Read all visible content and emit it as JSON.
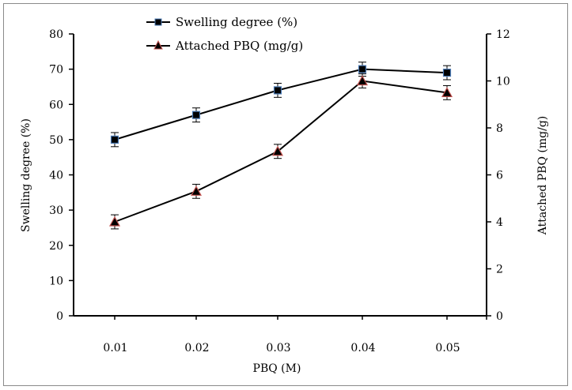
{
  "chart_data": {
    "type": "line",
    "title": "",
    "xlabel": "PBQ (M)",
    "ylabel": "Swelling degree (%)",
    "y2label": "Attached PBQ (mg/g)",
    "categories": [
      "0.01",
      "0.02",
      "0.03",
      "0.04",
      "0.05"
    ],
    "ylim": [
      0,
      80
    ],
    "y2lim": [
      0,
      12
    ],
    "yticks": [
      "0",
      "10",
      "20",
      "30",
      "40",
      "50",
      "60",
      "70",
      "80"
    ],
    "y2ticks": [
      "0",
      "2",
      "4",
      "6",
      "8",
      "10",
      "12"
    ],
    "grid": false,
    "legend_position": "top-center",
    "series": [
      {
        "name": "Swelling degree (%)",
        "axis": "left",
        "marker": "square",
        "marker_fill": "#000000",
        "marker_edge": "#4a7ab5",
        "values": [
          50,
          57,
          64,
          70,
          69
        ],
        "errors": [
          2,
          2,
          2,
          2,
          2
        ]
      },
      {
        "name": "Attached PBQ (mg/g)",
        "axis": "right",
        "marker": "triangle",
        "marker_fill": "#000000",
        "marker_edge": "#c0504d",
        "values": [
          4.0,
          5.3,
          7.0,
          10.0,
          9.5
        ],
        "errors": [
          0.3,
          0.3,
          0.3,
          0.3,
          0.3
        ]
      }
    ]
  }
}
